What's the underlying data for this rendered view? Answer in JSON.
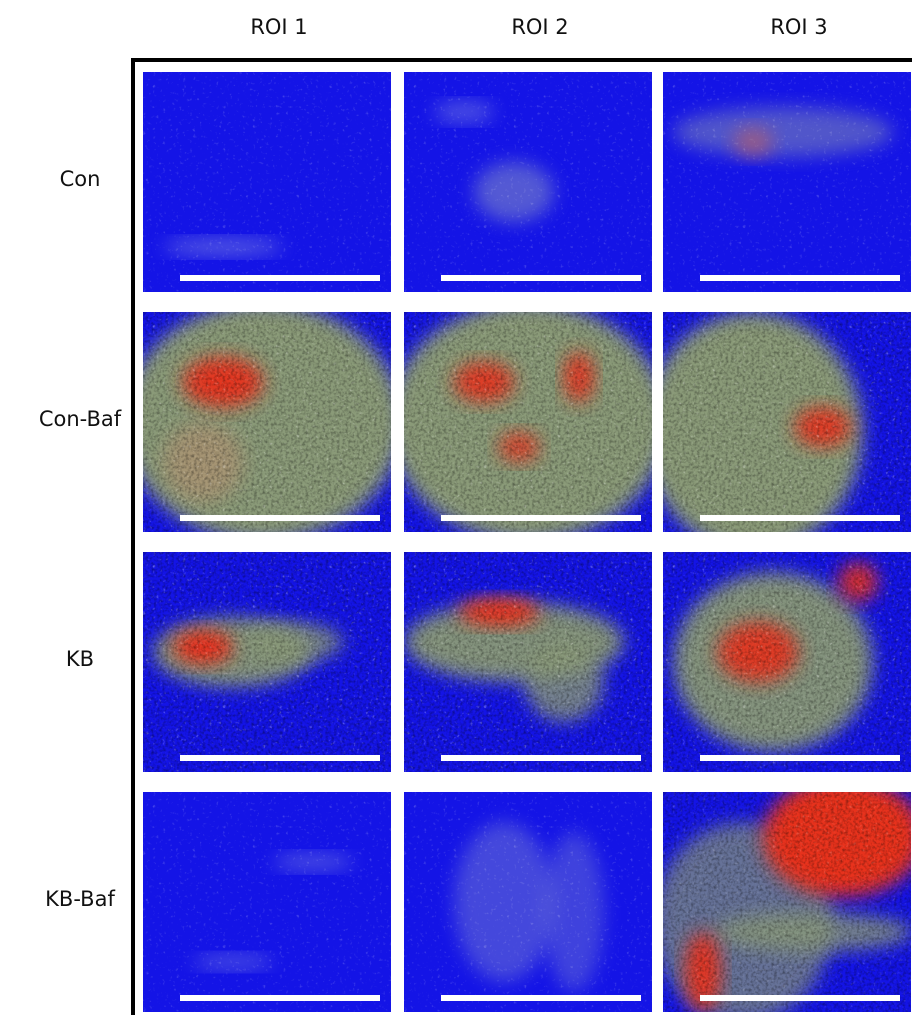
{
  "columns": [
    "ROI 1",
    "ROI 2",
    "ROI 3"
  ],
  "rows": [
    "Con",
    "Con-Baf",
    "KB",
    "KB-Baf"
  ]
}
